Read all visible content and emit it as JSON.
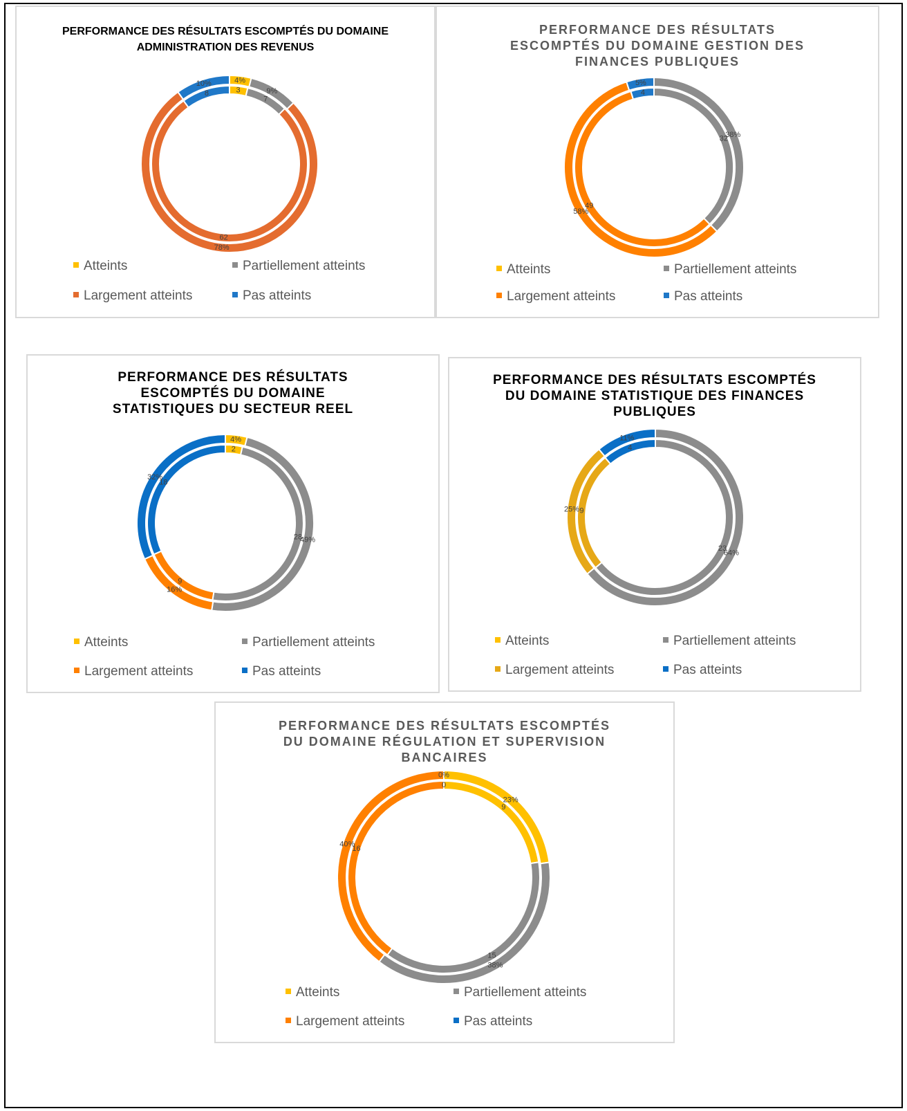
{
  "chart_data": [
    {
      "type": "doughnut",
      "title": "PERFORMANCE DES RÉSULTATS ESCOMPTÉS DU DOMAINE ADMINISTRATION DES REVENUS",
      "categories": [
        "Atteints",
        "Partiellement atteints",
        "Largement atteints",
        "Pas atteints"
      ],
      "colors": [
        "#ffc000",
        "#8c8c8c",
        "#e46c2f",
        "#1f78c8"
      ],
      "series": [
        {
          "values": [
            3,
            7,
            62,
            8
          ]
        },
        {
          "values": [
            4,
            9,
            78,
            10
          ],
          "value_labels": [
            "4%",
            "9%",
            "78%",
            "10%"
          ]
        }
      ]
    },
    {
      "type": "doughnut",
      "title": "PERFORMANCE DES RÉSULTATS ESCOMPTÉS DU DOMAINE GESTION DES FINANCES PUBLIQUES",
      "categories": [
        "Atteints",
        "Partiellement atteints",
        "Largement atteints",
        "Pas atteints"
      ],
      "colors": [
        "#ffc000",
        "#8c8c8c",
        "#ff8000",
        "#1f78c8"
      ],
      "series": [
        {
          "values": [
            0,
            32,
            49,
            4
          ]
        },
        {
          "values": [
            0,
            38,
            58,
            5
          ],
          "value_labels": [
            "0%",
            "38%",
            "58%",
            "5%"
          ]
        }
      ]
    },
    {
      "type": "doughnut",
      "title": "PERFORMANCE DES RÉSULTATS ESCOMPTÉS DU DOMAINE STATISTIQUES DU SECTEUR REEL",
      "categories": [
        "Atteints",
        "Partiellement atteints",
        "Largement atteints",
        "Pas atteints"
      ],
      "colors": [
        "#ffc000",
        "#8c8c8c",
        "#ff8000",
        "#0a6fc6"
      ],
      "series": [
        {
          "values": [
            2,
            28,
            9,
            18
          ]
        },
        {
          "values": [
            4,
            49,
            16,
            32
          ],
          "value_labels": [
            "4%",
            "49%",
            "16%",
            "32%"
          ]
        }
      ]
    },
    {
      "type": "doughnut",
      "title": "PERFORMANCE DES RÉSULTATS ESCOMPTÉS DU DOMAINE STATISTIQUE DES FINANCES PUBLIQUES",
      "categories": [
        "Atteints",
        "Partiellement atteints",
        "Largement atteints",
        "Pas atteints"
      ],
      "colors": [
        "#ffc000",
        "#8c8c8c",
        "#e6a817",
        "#0a6fc6"
      ],
      "series": [
        {
          "values": [
            0,
            23,
            9,
            4
          ]
        },
        {
          "values": [
            0,
            64,
            25,
            11
          ],
          "value_labels": [
            "0%",
            "64%",
            "25%",
            "11%"
          ]
        }
      ]
    },
    {
      "type": "doughnut",
      "title": "PERFORMANCE DES RÉSULTATS ESCOMPTÉS DU DOMAINE RÉGULATION ET SUPERVISION BANCAIRES",
      "categories": [
        "Atteints",
        "Partiellement atteints",
        "Largement atteints",
        "Pas atteints"
      ],
      "colors": [
        "#ffc000",
        "#8c8c8c",
        "#ff8000",
        "#0a6fc6"
      ],
      "series": [
        {
          "values": [
            9,
            15,
            16,
            0
          ]
        },
        {
          "values": [
            23,
            38,
            40,
            0
          ],
          "value_labels": [
            "23%",
            "38%",
            "40%",
            "0%"
          ]
        }
      ]
    }
  ]
}
